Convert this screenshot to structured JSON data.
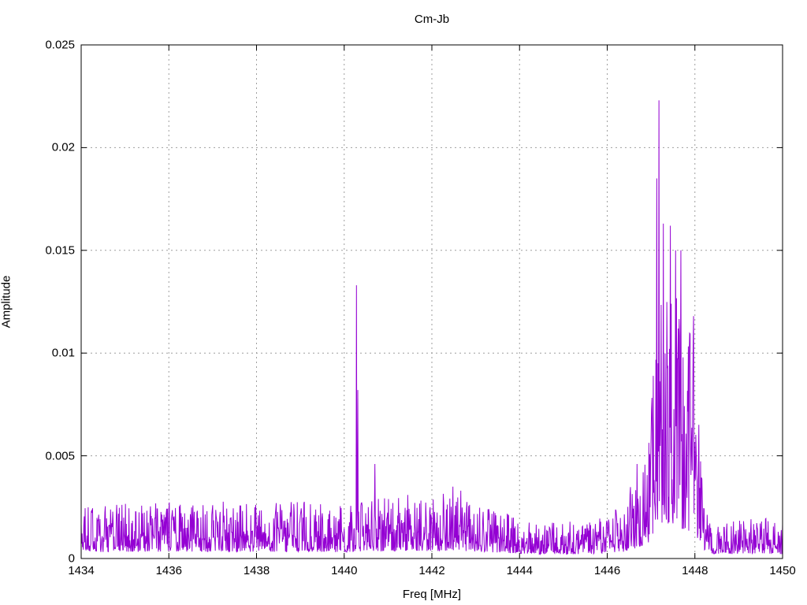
{
  "chart_data": {
    "type": "line",
    "title": "Cm-Jb",
    "xlabel": "Freq [MHz]",
    "ylabel": "Amplitude",
    "xlim": [
      1434,
      1450
    ],
    "ylim": [
      0,
      0.025
    ],
    "xticks": [
      1434,
      1436,
      1438,
      1440,
      1442,
      1444,
      1446,
      1448,
      1450
    ],
    "xtick_labels": [
      "1434",
      "1436",
      "1438",
      "1440",
      "1442",
      "1444",
      "1446",
      "1448",
      "1450"
    ],
    "yticks": [
      0,
      0.005,
      0.01,
      0.015,
      0.02,
      0.025
    ],
    "ytick_labels": [
      "0",
      "0.005",
      "0.01",
      "0.015",
      "0.02",
      "0.025"
    ],
    "grid": true,
    "grid_color": "#9e9e9e",
    "border_color": "#000000",
    "background": "#ffffff",
    "legend": "none",
    "series": [
      {
        "name": "Cm-Jb",
        "color": "#9400d3",
        "style": "lines"
      }
    ],
    "key_features": {
      "noise_floor_mean": 0.001,
      "noise_floor_max": 0.003,
      "narrow_spike": {
        "x": 1440.3,
        "y": 0.0133
      },
      "burst": {
        "x_start": 1446.9,
        "x_end": 1448.2,
        "peak_x": 1447.2,
        "peak_y": 0.0223
      }
    },
    "synthesis": {
      "seed": 20,
      "step": 0.01,
      "power": 1.8,
      "floor_frac": 0.12,
      "envelope": [
        [
          1434.0,
          0.0026
        ],
        [
          1436.0,
          0.0028
        ],
        [
          1437.0,
          0.0028
        ],
        [
          1438.0,
          0.0027
        ],
        [
          1439.0,
          0.0028
        ],
        [
          1440.0,
          0.0026
        ],
        [
          1440.5,
          0.0028
        ],
        [
          1441.0,
          0.003
        ],
        [
          1441.5,
          0.0032
        ],
        [
          1442.0,
          0.003
        ],
        [
          1442.5,
          0.0033
        ],
        [
          1443.0,
          0.0028
        ],
        [
          1443.5,
          0.0024
        ],
        [
          1444.0,
          0.002
        ],
        [
          1444.5,
          0.0018
        ],
        [
          1445.0,
          0.0018
        ],
        [
          1445.5,
          0.0018
        ],
        [
          1446.0,
          0.0022
        ],
        [
          1446.4,
          0.0028
        ],
        [
          1446.7,
          0.0045
        ],
        [
          1446.95,
          0.0065
        ],
        [
          1447.1,
          0.012
        ],
        [
          1447.2,
          0.014
        ],
        [
          1447.35,
          0.013
        ],
        [
          1447.5,
          0.0135
        ],
        [
          1447.65,
          0.0125
        ],
        [
          1447.8,
          0.0115
        ],
        [
          1447.95,
          0.011
        ],
        [
          1448.05,
          0.0085
        ],
        [
          1448.15,
          0.0045
        ],
        [
          1448.3,
          0.002
        ],
        [
          1448.6,
          0.0018
        ],
        [
          1449.0,
          0.0019
        ],
        [
          1449.5,
          0.0022
        ],
        [
          1449.8,
          0.0019
        ],
        [
          1450.0,
          0.0018
        ]
      ],
      "peaks": [
        {
          "x": 1440.28,
          "y": 0.0133
        },
        {
          "x": 1440.31,
          "y": 0.0082
        },
        {
          "x": 1440.7,
          "y": 0.0046
        },
        {
          "x": 1442.48,
          "y": 0.0035
        },
        {
          "x": 1442.66,
          "y": 0.0033
        },
        {
          "x": 1446.68,
          "y": 0.0046
        },
        {
          "x": 1446.82,
          "y": 0.0042
        },
        {
          "x": 1447.13,
          "y": 0.0185
        },
        {
          "x": 1447.18,
          "y": 0.0223
        },
        {
          "x": 1447.28,
          "y": 0.0163
        },
        {
          "x": 1447.44,
          "y": 0.0162
        },
        {
          "x": 1447.56,
          "y": 0.015
        },
        {
          "x": 1447.68,
          "y": 0.015
        },
        {
          "x": 1447.97,
          "y": 0.0118
        }
      ]
    }
  }
}
